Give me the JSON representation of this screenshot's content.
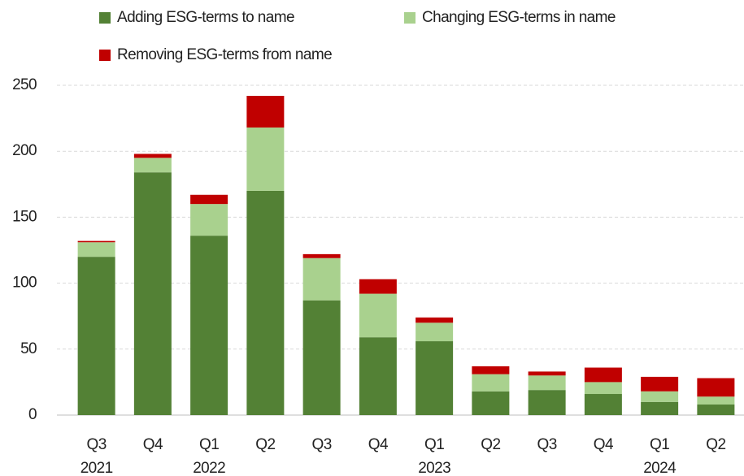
{
  "chart_data": {
    "type": "stacked_bar",
    "categories": [
      "Q3",
      "Q4",
      "Q1",
      "Q2",
      "Q3",
      "Q4",
      "Q1",
      "Q2",
      "Q3",
      "Q4",
      "Q1",
      "Q2"
    ],
    "years": [
      "2021",
      null,
      "2022",
      null,
      null,
      null,
      "2023",
      null,
      null,
      null,
      "2024",
      null
    ],
    "series": [
      {
        "name": "Adding ESG-terms to name",
        "color": "#538135",
        "values": [
          120,
          184,
          136,
          170,
          87,
          59,
          56,
          18,
          19,
          16,
          10,
          8
        ]
      },
      {
        "name": "Changing ESG-terms in name",
        "color": "#a9d18e",
        "values": [
          11,
          11,
          24,
          48,
          32,
          33,
          14,
          13,
          11,
          9,
          8,
          6
        ]
      },
      {
        "name": "Removing ESG-terms from name",
        "color": "#c00000",
        "values": [
          1,
          3,
          7,
          24,
          3,
          11,
          4,
          6,
          3,
          11,
          11,
          14
        ]
      }
    ],
    "ylim": [
      0,
      250
    ],
    "yticks": [
      0,
      50,
      100,
      150,
      200,
      250
    ],
    "grid": true
  }
}
